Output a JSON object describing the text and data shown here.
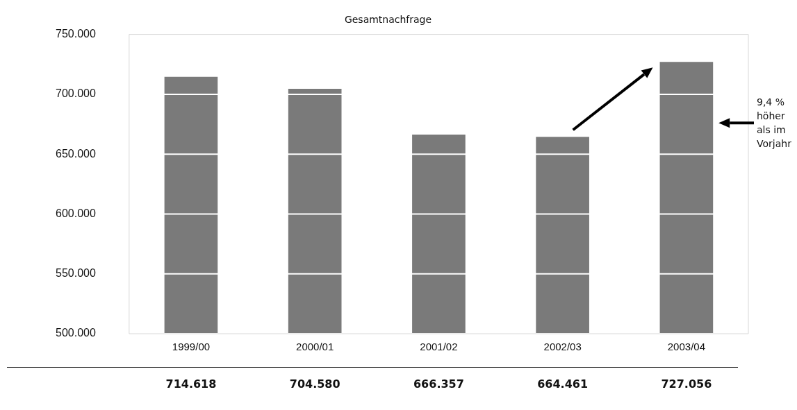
{
  "chart_data": {
    "type": "bar",
    "title": "Gesamtnachfrage",
    "categories": [
      "1999/00",
      "2000/01",
      "2001/02",
      "2002/03",
      "2003/04"
    ],
    "values": [
      714618,
      704580,
      666357,
      664461,
      727056
    ],
    "value_labels": [
      "714.618",
      "704.580",
      "666.357",
      "664.461",
      "727.056"
    ],
    "color": "#7a7a7a",
    "ylim": [
      500000,
      750000
    ],
    "yticks": [
      {
        "value": 500000,
        "label": "500.000"
      },
      {
        "value": 550000,
        "label": "550.000"
      },
      {
        "value": 600000,
        "label": "600.000"
      },
      {
        "value": 650000,
        "label": "650.000"
      },
      {
        "value": 700000,
        "label": "700.000"
      },
      {
        "value": 750000,
        "label": "750.000"
      }
    ],
    "grid": "y",
    "legend": false,
    "annotations": [
      "9,4 % höher als im Vorjahr"
    ]
  }
}
